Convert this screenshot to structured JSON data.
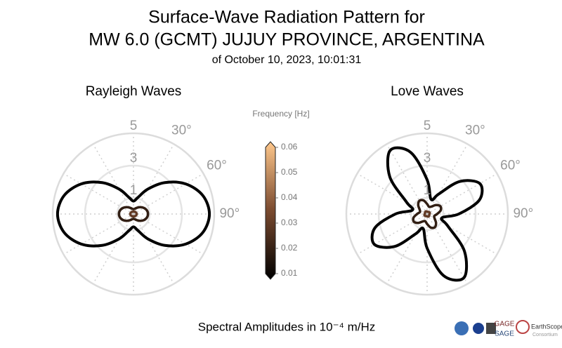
{
  "header": {
    "title": [
      "Surface-Wave Radiation Pattern for",
      "MW 6.0 (GCMT) JUJUY PROVINCE, ARGENTINA"
    ],
    "subtitle": "of October 10, 2023, 10:01:31"
  },
  "chart_data": [
    {
      "type": "polar",
      "title": "Rayleigh Waves",
      "theta": [
        0,
        15,
        30,
        45,
        60,
        75,
        90,
        105,
        120,
        135,
        150,
        165,
        180,
        195,
        210,
        225,
        240,
        255,
        270,
        285,
        300,
        315,
        330,
        345
      ],
      "series": [
        {
          "frequency": 0.01,
          "values": [
            0.8,
            1.06,
            1.78,
            2.75,
            3.73,
            4.44,
            4.7,
            4.44,
            3.73,
            2.75,
            1.78,
            1.06,
            0.8,
            1.06,
            1.78,
            2.75,
            3.73,
            4.44,
            4.7,
            4.44,
            3.73,
            2.75,
            1.78,
            1.06
          ]
        },
        {
          "frequency": 0.02,
          "values": [
            0.3,
            0.34,
            0.45,
            0.6,
            0.75,
            0.86,
            0.9,
            0.86,
            0.75,
            0.6,
            0.45,
            0.34,
            0.3,
            0.34,
            0.45,
            0.6,
            0.75,
            0.86,
            0.9,
            0.86,
            0.75,
            0.6,
            0.45,
            0.34
          ]
        },
        {
          "frequency": 0.03,
          "values": [
            0.15,
            0.15,
            0.16,
            0.17,
            0.18,
            0.19,
            0.2,
            0.19,
            0.18,
            0.17,
            0.16,
            0.15,
            0.15,
            0.15,
            0.16,
            0.17,
            0.18,
            0.19,
            0.2,
            0.19,
            0.18,
            0.17,
            0.16,
            0.15
          ]
        }
      ],
      "rlim": [
        0,
        5
      ],
      "rticks": [
        1,
        3,
        5
      ],
      "thetagrid": 30,
      "thetaticks": [
        {
          "value": 30,
          "label": "30°"
        },
        {
          "value": 60,
          "label": "60°"
        },
        {
          "value": 90,
          "label": "90°"
        }
      ]
    },
    {
      "type": "polar",
      "title": "Love Waves",
      "theta": [
        0,
        15,
        30,
        45,
        60,
        75,
        90,
        105,
        120,
        135,
        150,
        165,
        180,
        195,
        210,
        225,
        240,
        255,
        270,
        285,
        300,
        315,
        330,
        345
      ],
      "series": [
        {
          "frequency": 0.01,
          "values": [
            2.12,
            0.94,
            1.42,
            2.85,
            3.77,
            3.35,
            1.96,
            0.94,
            1.47,
            3.27,
            4.56,
            3.96,
            2.12,
            0.94,
            1.42,
            2.85,
            3.77,
            3.35,
            1.96,
            0.94,
            1.47,
            3.27,
            4.56,
            3.96
          ]
        },
        {
          "frequency": 0.02,
          "values": [
            0.62,
            0.46,
            0.53,
            0.78,
            0.95,
            0.87,
            0.62,
            0.46,
            0.53,
            0.78,
            0.95,
            0.87,
            0.62,
            0.46,
            0.53,
            0.78,
            0.95,
            0.87,
            0.62,
            0.46,
            0.53,
            0.78,
            0.95,
            0.87
          ]
        },
        {
          "frequency": 0.03,
          "values": [
            0.15,
            0.14,
            0.15,
            0.17,
            0.18,
            0.17,
            0.15,
            0.14,
            0.15,
            0.17,
            0.18,
            0.17,
            0.15,
            0.14,
            0.15,
            0.17,
            0.18,
            0.17,
            0.15,
            0.14,
            0.15,
            0.17,
            0.18,
            0.17
          ]
        }
      ],
      "rlim": [
        0,
        5
      ],
      "rticks": [
        1,
        3,
        5
      ],
      "thetagrid": 30,
      "thetaticks": [
        {
          "value": 30,
          "label": "30°"
        },
        {
          "value": 60,
          "label": "60°"
        },
        {
          "value": 90,
          "label": "90°"
        }
      ]
    }
  ],
  "colorbar": {
    "label": "Frequency [Hz]",
    "clim": [
      0.01,
      0.06
    ],
    "ticks": [
      0.01,
      0.02,
      0.03,
      0.04,
      0.05,
      0.06
    ],
    "colormap": [
      "#000000",
      "#7a4a2f",
      "#ffc88c"
    ]
  },
  "footer": "Spectral Amplitudes in 10⁻⁴ m/Hz",
  "logos": {
    "gage": "GAGE",
    "sage": "SAGE",
    "earthscope": "EarthScope",
    "consortium": "Consortium"
  }
}
